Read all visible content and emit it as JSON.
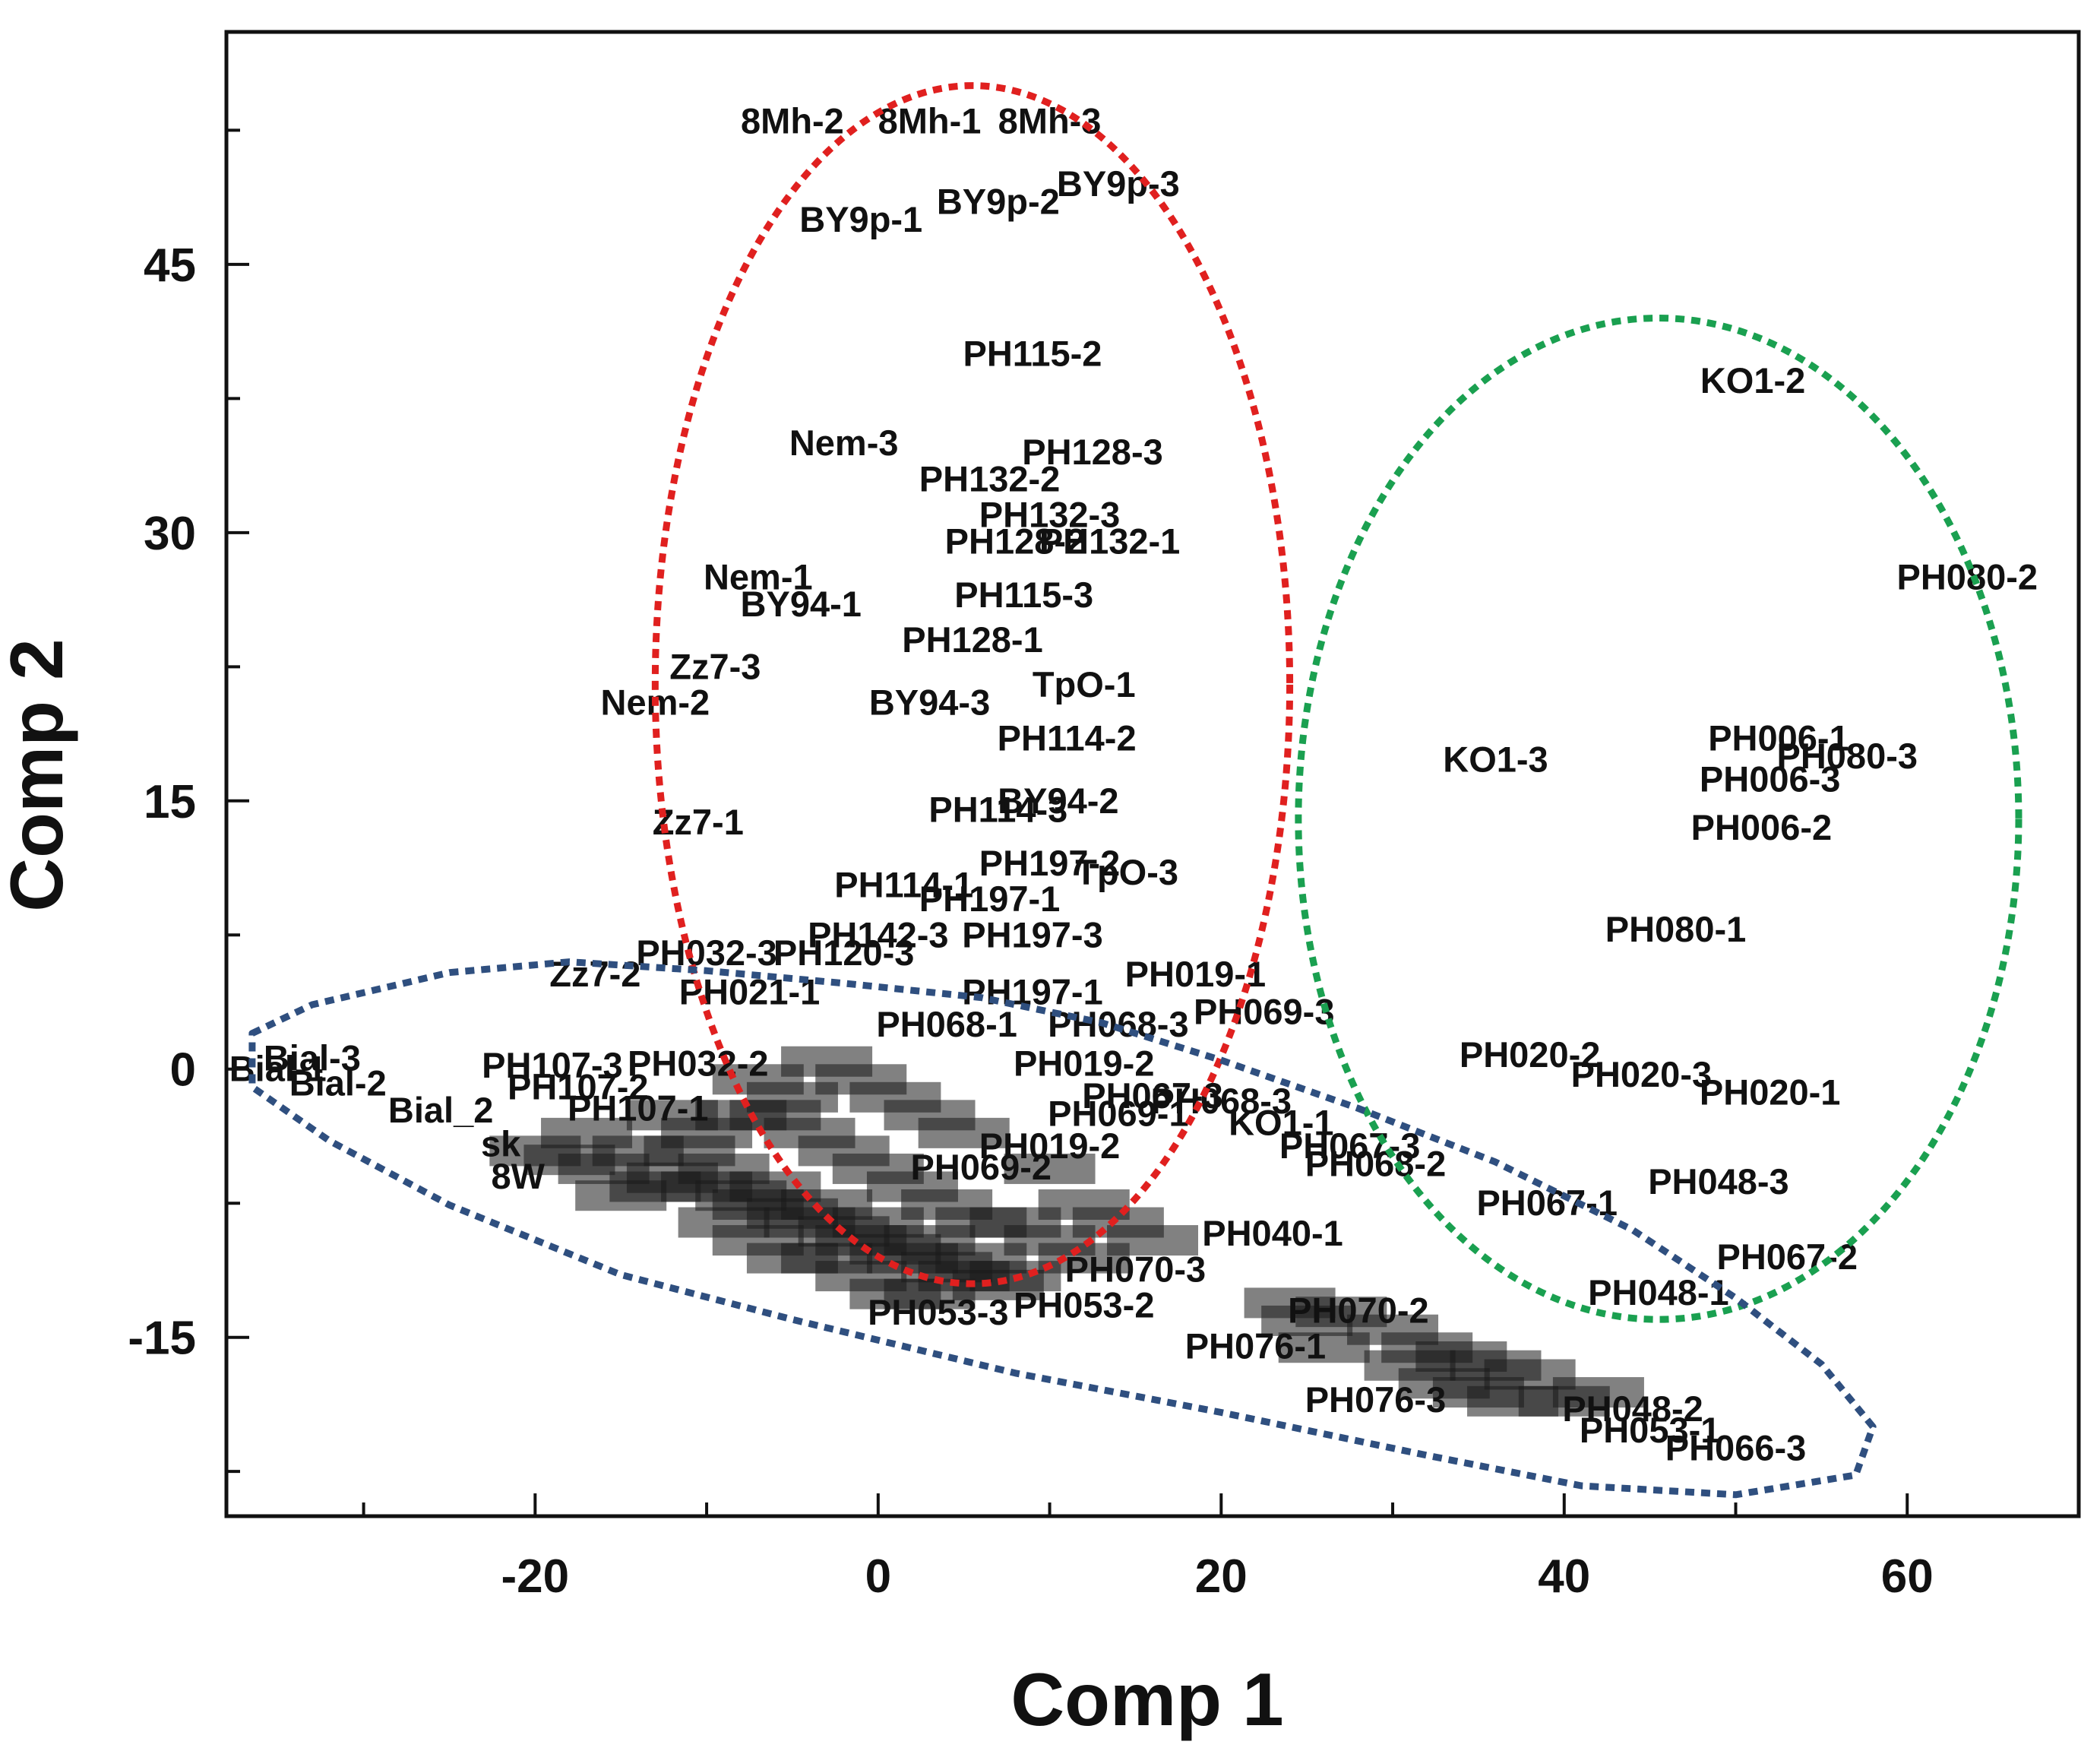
{
  "chart_data": {
    "type": "scatter",
    "xlabel": "Comp 1",
    "ylabel": "Comp 2",
    "xlim": [
      -38,
      70
    ],
    "ylim": [
      -25,
      58
    ],
    "x_ticks": [
      -20,
      0,
      20,
      40,
      60
    ],
    "y_ticks": [
      -15,
      0,
      15,
      30,
      45
    ],
    "x_tick_labels": [
      "-20",
      "0",
      "20",
      "40",
      "60"
    ],
    "y_tick_labels": [
      "-15",
      "0",
      "15",
      "30",
      "45"
    ],
    "grid": false,
    "legend": "none",
    "clusters": [
      {
        "color": "#e0201f",
        "center": [
          5.5,
          21.5
        ],
        "radii": [
          18.5,
          33.5
        ]
      },
      {
        "color": "#1aa050",
        "center": [
          45.5,
          14
        ],
        "radii": [
          21,
          28
        ]
      },
      {
        "color": "#2f4f7f",
        "polygon": [
          [
            -36.5,
            2
          ],
          [
            -33,
            3.6
          ],
          [
            -25,
            5.4
          ],
          [
            -18,
            6
          ],
          [
            -10,
            5.5
          ],
          [
            -2,
            4.8
          ],
          [
            6,
            4
          ],
          [
            13,
            2.6
          ],
          [
            20,
            0.5
          ],
          [
            28,
            -2.2
          ],
          [
            36,
            -5.2
          ],
          [
            44,
            -9
          ],
          [
            50,
            -12.8
          ],
          [
            55,
            -16.5
          ],
          [
            58,
            -20
          ],
          [
            57,
            -22.7
          ],
          [
            50,
            -23.8
          ],
          [
            41,
            -23.3
          ],
          [
            32,
            -21.6
          ],
          [
            20,
            -19.2
          ],
          [
            8,
            -17
          ],
          [
            -5,
            -14
          ],
          [
            -15,
            -11.5
          ],
          [
            -25,
            -7.6
          ],
          [
            -32,
            -4
          ],
          [
            -36.5,
            -1
          ]
        ]
      }
    ],
    "points": [
      {
        "label": "8Mh-2",
        "x": -5,
        "y": 53
      },
      {
        "label": "8Mh-1",
        "x": 3,
        "y": 53
      },
      {
        "label": "8Mh-3",
        "x": 10,
        "y": 53
      },
      {
        "label": "BY9p-1",
        "x": -1,
        "y": 47.5
      },
      {
        "label": "BY9p-2",
        "x": 7,
        "y": 48.5
      },
      {
        "label": "BY9p-3",
        "x": 14,
        "y": 49.5
      },
      {
        "label": "PH115-2",
        "x": 9,
        "y": 40
      },
      {
        "label": "Nem-3",
        "x": -2,
        "y": 35
      },
      {
        "label": "PH128-3",
        "x": 12.5,
        "y": 34.5
      },
      {
        "label": "PH132-2",
        "x": 6.5,
        "y": 33
      },
      {
        "label": "PH132-3",
        "x": 10,
        "y": 31
      },
      {
        "label": "PH128-2",
        "x": 8,
        "y": 29.5
      },
      {
        "label": "PH132-1",
        "x": 13.5,
        "y": 29.5
      },
      {
        "label": "Nem-1",
        "x": -7,
        "y": 27.5
      },
      {
        "label": "BY94-1",
        "x": -4.5,
        "y": 26
      },
      {
        "label": "PH115-3",
        "x": 8.5,
        "y": 26.5
      },
      {
        "label": "PH128-1",
        "x": 5.5,
        "y": 24
      },
      {
        "label": "Zz7-3",
        "x": -9.5,
        "y": 22.5
      },
      {
        "label": "Nem-2",
        "x": -13,
        "y": 20.5
      },
      {
        "label": "BY94-3",
        "x": 3,
        "y": 20.5
      },
      {
        "label": "TpO-1",
        "x": 12,
        "y": 21.5
      },
      {
        "label": "PH114-2",
        "x": 11,
        "y": 18.5
      },
      {
        "label": "BY94-2",
        "x": 10.5,
        "y": 15
      },
      {
        "label": "PH114-3",
        "x": 7,
        "y": 14.5
      },
      {
        "label": "Zz7-1",
        "x": -10.5,
        "y": 13.8
      },
      {
        "label": "PH197-2",
        "x": 10,
        "y": 11.5
      },
      {
        "label": "TpO-3",
        "x": 14.5,
        "y": 11
      },
      {
        "label": "PH114-1",
        "x": 1.5,
        "y": 10.3
      },
      {
        "label": "PH197-1",
        "x": 6.5,
        "y": 9.5
      },
      {
        "label": "PH197-3",
        "x": 9,
        "y": 7.5
      },
      {
        "label": "PH142-3",
        "x": 0,
        "y": 7.5
      },
      {
        "label": "PH032-3",
        "x": -10,
        "y": 6.5
      },
      {
        "label": "PH120-3",
        "x": -2,
        "y": 6.5
      },
      {
        "label": "Zz7-2",
        "x": -16.5,
        "y": 5.3
      },
      {
        "label": "PH021-1",
        "x": -7.5,
        "y": 4.3
      },
      {
        "label": "PH197-1",
        "x": 9,
        "y": 4.3
      },
      {
        "label": "PH019-1",
        "x": 18.5,
        "y": 5.3
      },
      {
        "label": "PH068-3",
        "x": 14,
        "y": 2.5
      },
      {
        "label": "PH069-3",
        "x": 22.5,
        "y": 3.2
      },
      {
        "label": "PH068-1",
        "x": 4,
        "y": 2.5
      },
      {
        "label": "Bial-3",
        "x": -33,
        "y": 0.6
      },
      {
        "label": "Bial-1",
        "x": -35,
        "y": 0
      },
      {
        "label": "Bial-2",
        "x": -31.5,
        "y": -0.8
      },
      {
        "label": "Bial_2",
        "x": -25.5,
        "y": -2.3
      },
      {
        "label": "PH107-3",
        "x": -19,
        "y": 0.2
      },
      {
        "label": "PH032-2",
        "x": -10.5,
        "y": 0.3
      },
      {
        "label": "PH107-2",
        "x": -17.5,
        "y": -1
      },
      {
        "label": "PH107-1",
        "x": -14,
        "y": -2.2
      },
      {
        "label": "PH019-2",
        "x": 12,
        "y": 0.3
      },
      {
        "label": "PH067-3",
        "x": 16,
        "y": -1.5
      },
      {
        "label": "PH068-3",
        "x": 20,
        "y": -1.8
      },
      {
        "label": "PH069-1",
        "x": 14,
        "y": -2.5
      },
      {
        "label": "KO1-1",
        "x": 23.5,
        "y": -3
      },
      {
        "label": "PH067-3",
        "x": 27.5,
        "y": -4.3
      },
      {
        "label": "PH068-2",
        "x": 29,
        "y": -5.3
      },
      {
        "label": "PH019-2",
        "x": 10,
        "y": -4.3
      },
      {
        "label": "PH069-2",
        "x": 6,
        "y": -5.5
      },
      {
        "label": "sk",
        "x": -22,
        "y": -4.2
      },
      {
        "label": "8W",
        "x": -21,
        "y": -6
      },
      {
        "label": "PH040-1",
        "x": 23,
        "y": -9.2
      },
      {
        "label": "PH070-3",
        "x": 15,
        "y": -11.2
      },
      {
        "label": "PH053-2",
        "x": 12,
        "y": -13.2
      },
      {
        "label": "PH053-3",
        "x": 3.5,
        "y": -13.6
      },
      {
        "label": "PH070-2",
        "x": 28,
        "y": -13.5
      },
      {
        "label": "PH076-1",
        "x": 22,
        "y": -15.5
      },
      {
        "label": "PH076-3",
        "x": 29,
        "y": -18.5
      },
      {
        "label": "PH048-2",
        "x": 44,
        "y": -19
      },
      {
        "label": "PH053-1",
        "x": 45,
        "y": -20.2
      },
      {
        "label": "PH066-3",
        "x": 50,
        "y": -21.2
      },
      {
        "label": "KO1-2",
        "x": 51,
        "y": 38.5
      },
      {
        "label": "PH080-2",
        "x": 63.5,
        "y": 27.5
      },
      {
        "label": "KO1-3",
        "x": 36,
        "y": 17.3
      },
      {
        "label": "PH006-1",
        "x": 52.5,
        "y": 18.5
      },
      {
        "label": "PH080-3",
        "x": 56.5,
        "y": 17.5
      },
      {
        "label": "PH006-3",
        "x": 52,
        "y": 16.2
      },
      {
        "label": "PH006-2",
        "x": 51.5,
        "y": 13.5
      },
      {
        "label": "PH080-1",
        "x": 46.5,
        "y": 7.8
      },
      {
        "label": "PH020-2",
        "x": 38,
        "y": 0.8
      },
      {
        "label": "PH020-3",
        "x": 44.5,
        "y": -0.3
      },
      {
        "label": "PH020-1",
        "x": 52,
        "y": -1.3
      },
      {
        "label": "PH048-3",
        "x": 49,
        "y": -6.3
      },
      {
        "label": "PH067-1",
        "x": 39,
        "y": -7.5
      },
      {
        "label": "PH067-2",
        "x": 53,
        "y": -10.5
      },
      {
        "label": "PH048-1",
        "x": 45.5,
        "y": -12.5
      }
    ],
    "dense_points": [
      [
        -20,
        -5
      ],
      [
        -18,
        -5.5
      ],
      [
        -16,
        -6
      ],
      [
        -14,
        -5
      ],
      [
        -12,
        -6.5
      ],
      [
        -11,
        -5
      ],
      [
        -10,
        -7
      ],
      [
        -9,
        -6
      ],
      [
        -8,
        -7.5
      ],
      [
        -7,
        -8
      ],
      [
        -6,
        -7
      ],
      [
        -5,
        -8.5
      ],
      [
        -4,
        -9
      ],
      [
        -3,
        -8
      ],
      [
        -2,
        -9.5
      ],
      [
        -1,
        -10
      ],
      [
        0,
        -9
      ],
      [
        1,
        -10.5
      ],
      [
        2,
        -11
      ],
      [
        3,
        -10
      ],
      [
        4,
        -11.5
      ],
      [
        5,
        -12
      ],
      [
        6,
        -11
      ],
      [
        7,
        -12.5
      ],
      [
        8,
        -12
      ],
      [
        -17,
        -4
      ],
      [
        -15,
        -7.5
      ],
      [
        -13,
        -7
      ],
      [
        -9,
        -9
      ],
      [
        -7,
        -10
      ],
      [
        -5,
        -11
      ],
      [
        -3,
        -11
      ],
      [
        -1,
        -12
      ],
      [
        1,
        -13
      ],
      [
        3,
        -13
      ],
      [
        -6,
        -3
      ],
      [
        -4,
        -4
      ],
      [
        -2,
        -5
      ],
      [
        0,
        -6
      ],
      [
        2,
        -7
      ],
      [
        4,
        -8
      ],
      [
        6,
        -9
      ],
      [
        8,
        -9
      ],
      [
        10,
        -10
      ],
      [
        12,
        -11
      ],
      [
        -7,
        -1
      ],
      [
        -5,
        -2
      ],
      [
        -3,
        0
      ],
      [
        -1,
        -1
      ],
      [
        1,
        -2
      ],
      [
        3,
        -3
      ],
      [
        5,
        -4
      ],
      [
        -8,
        -3
      ],
      [
        -10,
        -4
      ],
      [
        -12,
        -3
      ],
      [
        10,
        -6
      ],
      [
        12,
        -8
      ],
      [
        14,
        -9
      ],
      [
        16,
        -10
      ],
      [
        30,
        -15
      ],
      [
        32,
        -16
      ],
      [
        34,
        -16.5
      ],
      [
        36,
        -17
      ],
      [
        38,
        -17.5
      ],
      [
        31,
        -17
      ],
      [
        33,
        -18
      ],
      [
        35,
        -18.5
      ],
      [
        37,
        -19
      ],
      [
        40,
        -19
      ],
      [
        42,
        -18.5
      ],
      [
        27,
        -14
      ],
      [
        25,
        -14.5
      ],
      [
        24,
        -13.5
      ],
      [
        26,
        -16
      ]
    ]
  }
}
